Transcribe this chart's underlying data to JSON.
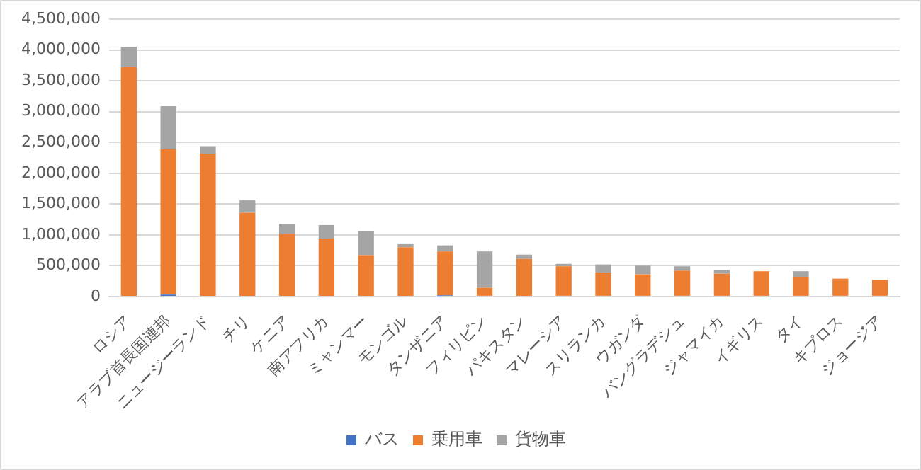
{
  "chart_data": {
    "type": "bar",
    "stacked": true,
    "legend": "bottom",
    "grid": "y",
    "categories": [
      "ロシア",
      "アラブ首長国連邦",
      "ニュージーランド",
      "チリ",
      "ケニア",
      "南アフリカ",
      "ミャンマー",
      "モンゴル",
      "タンザニア",
      "フィリピン",
      "パキスタン",
      "マレーシア",
      "スリランカ",
      "ウガンダ",
      "バングラデシュ",
      "ジャマイカ",
      "イギリス",
      "タイ",
      "キプロス",
      "ジョージア"
    ],
    "ylim": [
      0,
      4500000
    ],
    "yticks": [
      0,
      {
        "value": 500000,
        "label": "500,000"
      },
      {
        "value": 1000000,
        "label": "1,000,000"
      },
      {
        "value": 1500000,
        "label": "1,500,000"
      },
      {
        "value": 2000000,
        "label": "2,000,000"
      },
      {
        "value": 2500000,
        "label": "2,500,000"
      },
      {
        "value": 3000000,
        "label": "3,000,000"
      },
      {
        "value": 3500000,
        "label": "3,500,000"
      },
      {
        "value": 4000000,
        "label": "4,000,000"
      },
      {
        "value": 4500000,
        "label": "4,500,000"
      }
    ],
    "series": [
      {
        "name": "バス",
        "color": "#4472c4",
        "values": [
          0,
          30000,
          0,
          0,
          0,
          0,
          0,
          0,
          20000,
          0,
          0,
          0,
          0,
          0,
          0,
          0,
          0,
          0,
          0,
          0
        ]
      },
      {
        "name": "乗用車",
        "color": "#ed7d31",
        "values": [
          3720000,
          2360000,
          2320000,
          1360000,
          1010000,
          940000,
          670000,
          800000,
          710000,
          140000,
          610000,
          490000,
          390000,
          360000,
          420000,
          370000,
          410000,
          310000,
          290000,
          270000
        ]
      },
      {
        "name": "貨物車",
        "color": "#a5a5a5",
        "values": [
          330000,
          700000,
          120000,
          200000,
          170000,
          220000,
          390000,
          50000,
          100000,
          590000,
          70000,
          40000,
          130000,
          140000,
          70000,
          60000,
          0,
          100000,
          0,
          0
        ]
      }
    ]
  }
}
